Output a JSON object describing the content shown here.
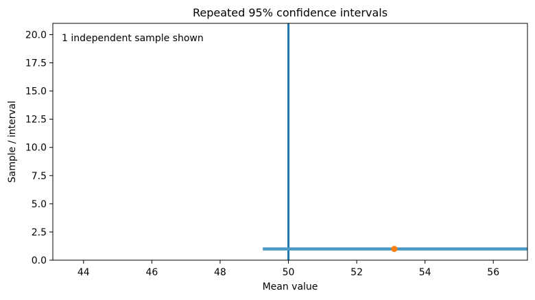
{
  "chart_data": {
    "type": "scatter",
    "title": "Repeated 95% confidence intervals",
    "xlabel": "Mean value",
    "ylabel": "Sample / interval",
    "annotation": "1 independent sample shown",
    "xlim": [
      43.1,
      57.0
    ],
    "ylim": [
      0,
      21
    ],
    "xticks": [
      44,
      46,
      48,
      50,
      52,
      54,
      56
    ],
    "yticks": [
      "0.0",
      "2.5",
      "5.0",
      "7.5",
      "10.0",
      "12.5",
      "15.0",
      "17.5",
      "20.0"
    ],
    "reference_line": {
      "x": 50,
      "color": "#1f77b4"
    },
    "intervals": [
      {
        "sample": 1,
        "mean": 53.1,
        "lower": 49.25,
        "upper": 57.0,
        "line_color": "#4c98c5",
        "point_color": "#ff7f0e"
      }
    ],
    "grid": false,
    "legend": "none"
  }
}
